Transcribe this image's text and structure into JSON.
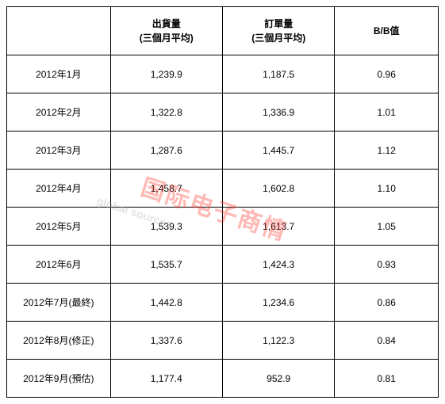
{
  "headers": {
    "month": "",
    "shipments_l1": "出貨量",
    "shipments_l2": "(三個月平均)",
    "orders_l1": "訂單量",
    "orders_l2": "(三個月平均)",
    "bb": "B/B值"
  },
  "rows": [
    {
      "month": "2012年1月",
      "shipments": "1,239.9",
      "orders": "1,187.5",
      "bb": "0.96"
    },
    {
      "month": "2012年2月",
      "shipments": "1,322.8",
      "orders": "1,336.9",
      "bb": "1.01"
    },
    {
      "month": "2012年3月",
      "shipments": "1,287.6",
      "orders": "1,445.7",
      "bb": "1.12"
    },
    {
      "month": "2012年4月",
      "shipments": "1,458.7",
      "orders": "1,602.8",
      "bb": "1.10"
    },
    {
      "month": "2012年5月",
      "shipments": "1,539.3",
      "orders": "1,613.7",
      "bb": "1.05"
    },
    {
      "month": "2012年6月",
      "shipments": "1,535.7",
      "orders": "1,424.3",
      "bb": "0.93"
    },
    {
      "month": "2012年7月(最終)",
      "shipments": "1,442.8",
      "orders": "1,234.6",
      "bb": "0.86"
    },
    {
      "month": "2012年8月(修正)",
      "shipments": "1,337.6",
      "orders": "1,122.3",
      "bb": "0.84"
    },
    {
      "month": "2012年9月(預估)",
      "shipments": "1,177.4",
      "orders": "952.9",
      "bb": "0.81"
    }
  ],
  "watermark": {
    "gray": "global sources",
    "red": "国际电子商情"
  },
  "style": {
    "border_color": "#000000",
    "background": "#ffffff",
    "font_size_cell": 12,
    "font_size_wm_red": 30,
    "font_size_wm_gray": 14,
    "wm_red_color": "#ff3a2f",
    "wm_gray_color": "#b0b0b0",
    "header_row_height": 60,
    "data_row_height": 47
  }
}
